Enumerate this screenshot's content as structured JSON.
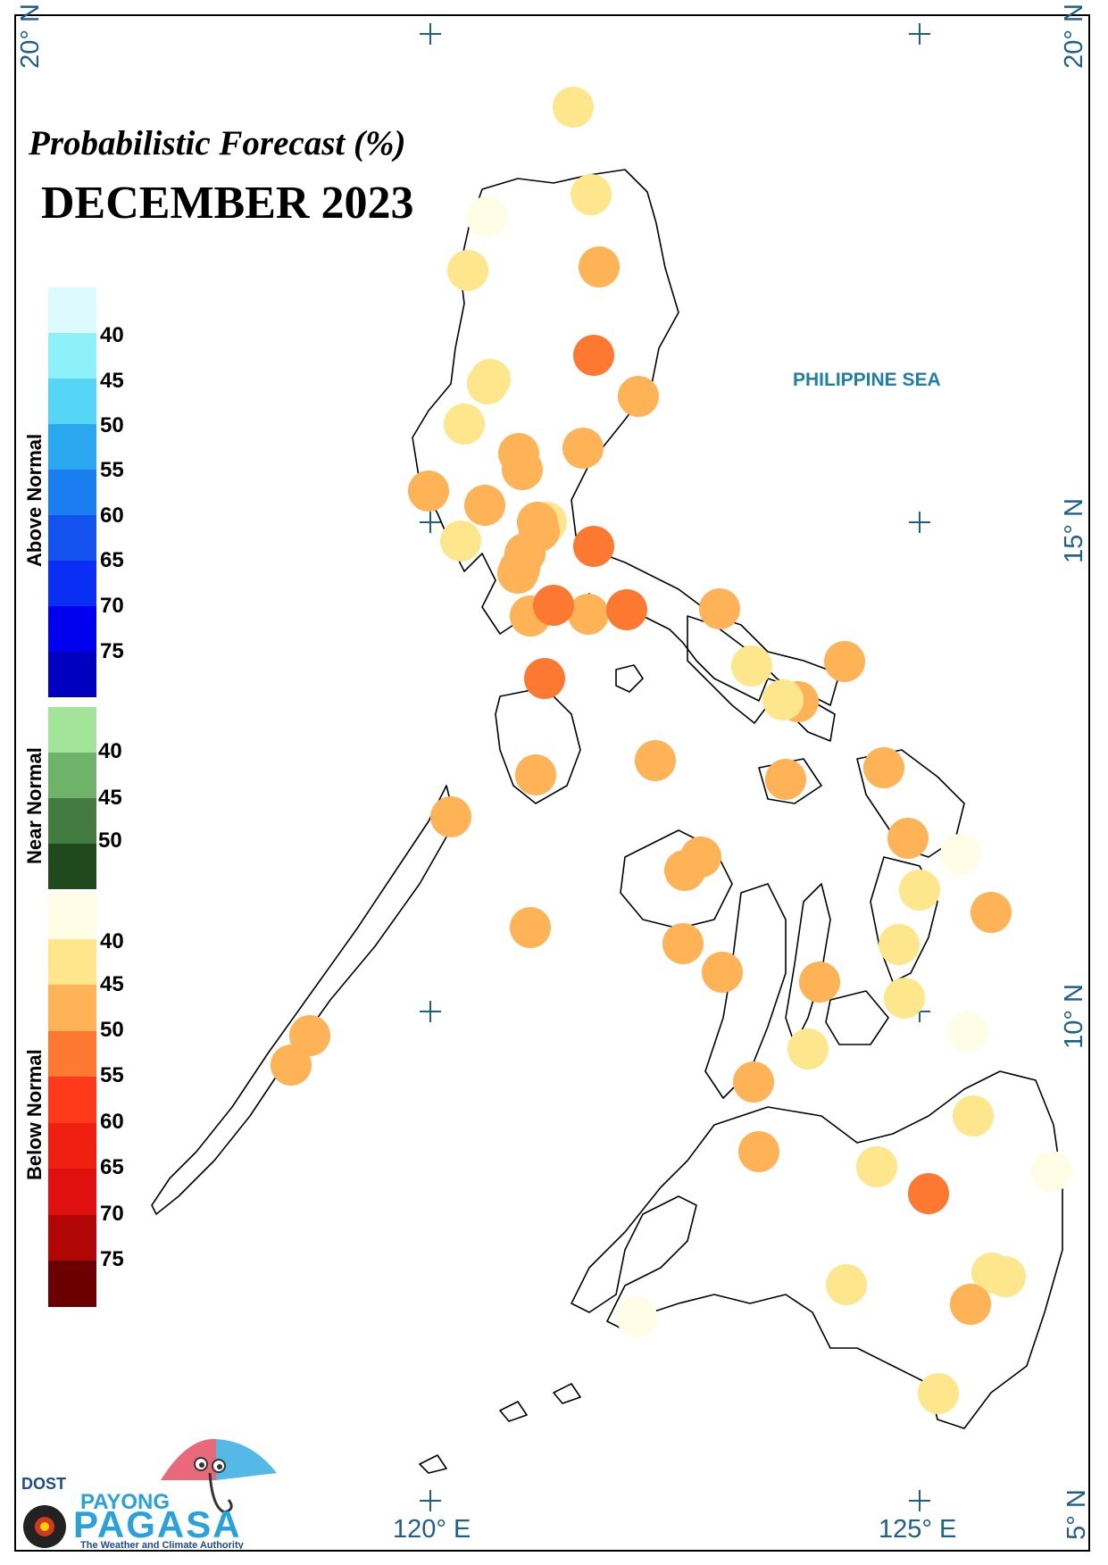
{
  "map": {
    "title": "Probabilistic Forecast (%)",
    "subtitle": "DECEMBER 2023",
    "sea_label": "PHILIPPINE SEA",
    "lat_labels": {
      "top_left": "20° N",
      "top_right": "20° N",
      "mid15": "15° N",
      "mid10": "10° N",
      "bottom5": "5° N"
    },
    "lon_labels": {
      "l120": "120° E",
      "l125": "125° E"
    }
  },
  "legend": {
    "above": {
      "title": "Above Normal",
      "labels": [
        "40",
        "45",
        "50",
        "55",
        "60",
        "65",
        "70",
        "75"
      ],
      "colors": [
        "#ddfbff",
        "#8ef0f8",
        "#55d6f6",
        "#2aa8ef",
        "#1a7ef0",
        "#1452f0",
        "#0b2ef4",
        "#0000ee",
        "#0000c0"
      ]
    },
    "near": {
      "title": "Near Normal",
      "labels": [
        "40",
        "45",
        "50"
      ],
      "colors": [
        "#a3e49a",
        "#6fb26a",
        "#427a40",
        "#204a1e"
      ]
    },
    "below": {
      "title": "Below Normal",
      "labels": [
        "40",
        "45",
        "50",
        "55",
        "60",
        "65",
        "70",
        "75"
      ],
      "colors": [
        "#fffde6",
        "#fde68c",
        "#fdb356",
        "#fd7831",
        "#fd3b1a",
        "#f02010",
        "#e01010",
        "#b00606",
        "#6b0000"
      ]
    }
  },
  "stations_legend": [
    "#fffde6",
    "#fde68c",
    "#fdb356",
    "#fd7831"
  ],
  "logo": {
    "agency": "DOST",
    "brand_top": "PAYONG",
    "brand_main": "PAGASA",
    "tagline": "The Weather and Climate Authority"
  }
}
